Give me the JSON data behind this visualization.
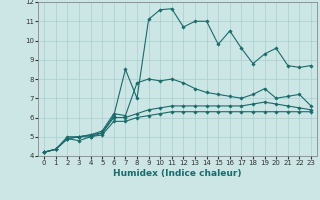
{
  "title": "",
  "xlabel": "Humidex (Indice chaleur)",
  "ylabel": "",
  "background_color": "#cce5e5",
  "line_color": "#1a6b6b",
  "grid_color": "#aacfcf",
  "xlim": [
    -0.5,
    23.5
  ],
  "ylim": [
    4,
    12
  ],
  "xticks": [
    0,
    1,
    2,
    3,
    4,
    5,
    6,
    7,
    8,
    9,
    10,
    11,
    12,
    13,
    14,
    15,
    16,
    17,
    18,
    19,
    20,
    21,
    22,
    23
  ],
  "yticks": [
    4,
    5,
    6,
    7,
    8,
    9,
    10,
    11,
    12
  ],
  "lines": [
    {
      "x": [
        0,
        1,
        2,
        3,
        4,
        5,
        6,
        7,
        8,
        9,
        10,
        11,
        12,
        13,
        14,
        15,
        16,
        17,
        18,
        19,
        20,
        21,
        22,
        23
      ],
      "y": [
        4.2,
        4.35,
        4.9,
        5.0,
        5.1,
        5.2,
        6.1,
        8.5,
        7.0,
        11.1,
        11.6,
        11.65,
        10.7,
        11.0,
        11.0,
        9.8,
        10.5,
        9.6,
        8.8,
        9.3,
        9.6,
        8.7,
        8.6,
        8.7
      ]
    },
    {
      "x": [
        0,
        1,
        2,
        3,
        4,
        5,
        6,
        7,
        8,
        9,
        10,
        11,
        12,
        13,
        14,
        15,
        16,
        17,
        18,
        19,
        20,
        21,
        22,
        23
      ],
      "y": [
        4.2,
        4.35,
        5.0,
        5.0,
        5.1,
        5.3,
        6.2,
        6.1,
        7.8,
        8.0,
        7.9,
        8.0,
        7.8,
        7.5,
        7.3,
        7.2,
        7.1,
        7.0,
        7.2,
        7.5,
        7.0,
        7.1,
        7.2,
        6.6
      ]
    },
    {
      "x": [
        0,
        1,
        2,
        3,
        4,
        5,
        6,
        7,
        8,
        9,
        10,
        11,
        12,
        13,
        14,
        15,
        16,
        17,
        18,
        19,
        20,
        21,
        22,
        23
      ],
      "y": [
        4.2,
        4.35,
        4.9,
        4.8,
        5.0,
        5.2,
        6.0,
        6.0,
        6.2,
        6.4,
        6.5,
        6.6,
        6.6,
        6.6,
        6.6,
        6.6,
        6.6,
        6.6,
        6.7,
        6.8,
        6.7,
        6.6,
        6.5,
        6.4
      ]
    },
    {
      "x": [
        0,
        1,
        2,
        3,
        4,
        5,
        6,
        7,
        8,
        9,
        10,
        11,
        12,
        13,
        14,
        15,
        16,
        17,
        18,
        19,
        20,
        21,
        22,
        23
      ],
      "y": [
        4.2,
        4.35,
        4.9,
        5.0,
        5.0,
        5.1,
        5.8,
        5.8,
        6.0,
        6.1,
        6.2,
        6.3,
        6.3,
        6.3,
        6.3,
        6.3,
        6.3,
        6.3,
        6.3,
        6.3,
        6.3,
        6.3,
        6.3,
        6.3
      ]
    }
  ],
  "xlabel_color": "#1a6b6b",
  "xlabel_fontsize": 6.5,
  "tick_fontsize": 5.0,
  "tick_color": "#333333",
  "spine_color": "#888888"
}
